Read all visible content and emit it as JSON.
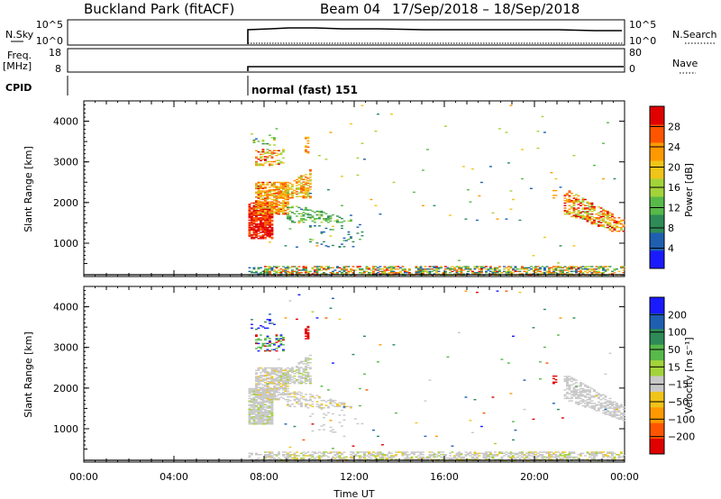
{
  "header": {
    "station": "Buckland Park (fitACF)",
    "beam": "Beam 04",
    "date_range": "17/Sep/2018 – 18/Sep/2018"
  },
  "status_panels": {
    "nsky": {
      "label": "N.Sky",
      "ticks": [
        "10^5",
        "10^0"
      ],
      "right_ticks": [
        "10^5",
        "10^0"
      ],
      "right_label": "N.Search"
    },
    "freq": {
      "label_line1": "Freq.",
      "label_line2": "[MHz]",
      "ticks": [
        "18",
        "8"
      ],
      "right_ticks": [
        "80",
        "0"
      ],
      "right_label": "Nave"
    },
    "cpid": {
      "label": "CPID",
      "text": "normal (fast) 151"
    }
  },
  "chart_data": [
    {
      "type": "heatmap",
      "title": "",
      "xlabel": "",
      "ylabel": "Slant Range [km]",
      "xlim": [
        "00:00",
        "24:00"
      ],
      "ylim": [
        180,
        4500
      ],
      "yticks": [
        1000,
        2000,
        3000,
        4000
      ],
      "colorbar": {
        "label": "Power [dB]",
        "range": [
          0,
          32
        ],
        "ticks": [
          4,
          8,
          12,
          16,
          20,
          24,
          28
        ],
        "colors": [
          "#1a1aff",
          "#1f5fb0",
          "#2e8b57",
          "#58b94a",
          "#a3d33a",
          "#f0c419",
          "#ff9900",
          "#ff5500",
          "#e00000"
        ]
      }
    },
    {
      "type": "heatmap",
      "title": "",
      "xlabel": "Time UT",
      "ylabel": "Slant Range [km]",
      "xlim": [
        "00:00",
        "24:00"
      ],
      "ylim": [
        180,
        4500
      ],
      "yticks": [
        1000,
        2000,
        3000,
        4000
      ],
      "xticks": [
        "00:00",
        "04:00",
        "08:00",
        "12:00",
        "16:00",
        "20:00",
        "00:00"
      ],
      "colorbar": {
        "label": "Velocity [m s⁻¹]",
        "range": [
          -250,
          250
        ],
        "ticks": [
          200,
          100,
          50,
          15,
          -15,
          -50,
          -100,
          -200
        ],
        "colors": [
          "#e00000",
          "#ff5500",
          "#ff9900",
          "#f0c419",
          "#c8c8c8",
          "#a3d33a",
          "#58b94a",
          "#2e8b57",
          "#1f5fb0",
          "#1a1aff"
        ]
      }
    }
  ],
  "data_start_time": "07:20"
}
